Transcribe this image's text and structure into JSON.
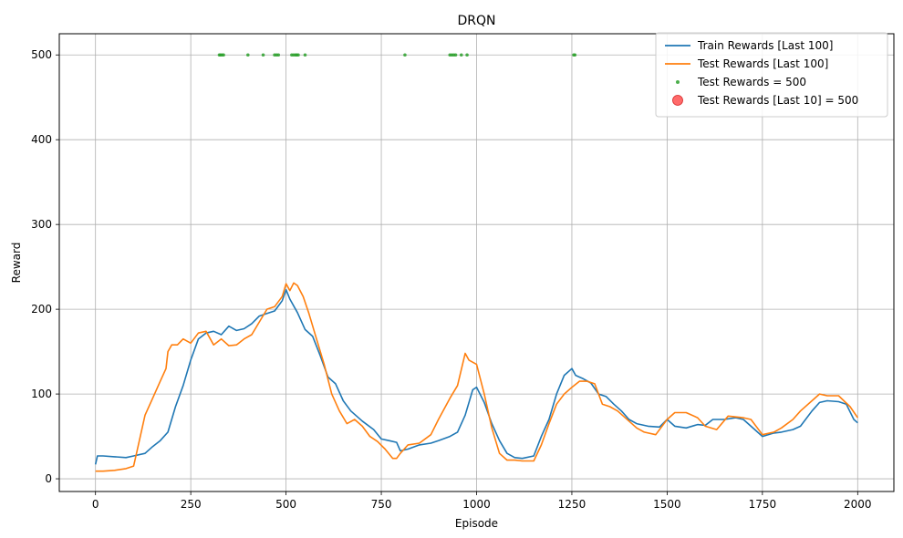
{
  "chart_data": {
    "type": "line",
    "title": "DRQN",
    "xlabel": "Episode",
    "ylabel": "Reward",
    "xlim": [
      -95,
      2095
    ],
    "ylim": [
      -15,
      525
    ],
    "xticks": [
      0,
      250,
      500,
      750,
      1000,
      1250,
      1500,
      1750,
      2000
    ],
    "yticks": [
      0,
      100,
      200,
      300,
      400,
      500
    ],
    "grid": true,
    "legend_position": "top-right",
    "series": [
      {
        "name": "Train Rewards [Last 100]",
        "type": "line",
        "color": "#1f77b4",
        "x": [
          0,
          5,
          20,
          50,
          80,
          100,
          130,
          150,
          170,
          190,
          210,
          230,
          250,
          270,
          290,
          310,
          330,
          350,
          370,
          390,
          410,
          430,
          450,
          470,
          490,
          500,
          510,
          530,
          550,
          570,
          590,
          610,
          630,
          650,
          670,
          700,
          730,
          750,
          770,
          790,
          800,
          820,
          850,
          880,
          900,
          930,
          950,
          970,
          990,
          1000,
          1020,
          1040,
          1060,
          1080,
          1100,
          1120,
          1150,
          1170,
          1190,
          1210,
          1230,
          1250,
          1260,
          1280,
          1300,
          1320,
          1340,
          1360,
          1380,
          1400,
          1420,
          1450,
          1480,
          1500,
          1520,
          1550,
          1580,
          1600,
          1620,
          1650,
          1680,
          1700,
          1720,
          1750,
          1780,
          1800,
          1830,
          1850,
          1880,
          1900,
          1920,
          1950,
          1970,
          1990,
          2000
        ],
        "y": [
          17,
          27,
          27,
          26,
          25,
          27,
          30,
          38,
          45,
          55,
          85,
          110,
          140,
          165,
          172,
          174,
          170,
          180,
          175,
          177,
          183,
          192,
          195,
          198,
          210,
          223,
          212,
          196,
          176,
          168,
          145,
          120,
          112,
          92,
          80,
          68,
          58,
          47,
          45,
          43,
          33,
          35,
          40,
          42,
          45,
          50,
          55,
          75,
          105,
          108,
          90,
          65,
          45,
          30,
          25,
          24,
          27,
          50,
          70,
          100,
          122,
          130,
          122,
          118,
          113,
          100,
          97,
          88,
          80,
          70,
          65,
          62,
          61,
          70,
          62,
          60,
          64,
          63,
          70,
          70,
          72,
          70,
          62,
          50,
          54,
          55,
          58,
          62,
          80,
          90,
          92,
          91,
          88,
          70,
          66
        ]
      },
      {
        "name": "Test Rewards [Last 100]",
        "type": "line",
        "color": "#ff7f0e",
        "x": [
          0,
          20,
          50,
          80,
          100,
          110,
          130,
          150,
          170,
          185,
          190,
          200,
          215,
          230,
          250,
          270,
          290,
          310,
          330,
          350,
          370,
          390,
          410,
          430,
          450,
          470,
          490,
          500,
          510,
          520,
          530,
          545,
          560,
          580,
          600,
          620,
          640,
          660,
          680,
          700,
          720,
          740,
          760,
          780,
          790,
          800,
          820,
          850,
          880,
          900,
          930,
          950,
          970,
          980,
          1000,
          1020,
          1040,
          1060,
          1080,
          1100,
          1120,
          1150,
          1170,
          1190,
          1210,
          1230,
          1250,
          1270,
          1290,
          1310,
          1330,
          1350,
          1370,
          1400,
          1420,
          1440,
          1470,
          1500,
          1520,
          1550,
          1580,
          1600,
          1630,
          1660,
          1700,
          1720,
          1750,
          1780,
          1800,
          1830,
          1850,
          1880,
          1900,
          1920,
          1950,
          1980,
          2000
        ],
        "y": [
          9,
          9,
          10,
          12,
          15,
          35,
          75,
          95,
          115,
          130,
          150,
          158,
          158,
          165,
          160,
          172,
          174,
          158,
          165,
          157,
          158,
          165,
          170,
          185,
          200,
          203,
          215,
          230,
          222,
          231,
          228,
          215,
          195,
          165,
          135,
          100,
          80,
          65,
          70,
          62,
          50,
          44,
          35,
          24,
          24,
          30,
          40,
          42,
          52,
          70,
          95,
          110,
          148,
          140,
          135,
          100,
          60,
          30,
          22,
          22,
          21,
          21,
          40,
          65,
          88,
          100,
          108,
          115,
          115,
          112,
          88,
          85,
          80,
          68,
          60,
          55,
          52,
          70,
          78,
          78,
          72,
          62,
          58,
          74,
          72,
          70,
          52,
          55,
          60,
          70,
          80,
          92,
          100,
          98,
          98,
          85,
          72
        ]
      },
      {
        "name": "Test Rewards = 500",
        "type": "scatter",
        "color": "#2ca02c",
        "x": [
          325,
          328,
          332,
          336,
          400,
          440,
          470,
          475,
          480,
          515,
          520,
          525,
          528,
          532,
          550,
          812,
          930,
          935,
          940,
          945,
          960,
          975,
          1255,
          1258
        ],
        "y": [
          500,
          500,
          500,
          500,
          500,
          500,
          500,
          500,
          500,
          500,
          500,
          500,
          500,
          500,
          500,
          500,
          500,
          500,
          500,
          500,
          500,
          500,
          500,
          500
        ]
      },
      {
        "name": "Test Rewards [Last 10] = 500",
        "type": "scatter",
        "color": "#ff5a5a",
        "x": [],
        "y": []
      }
    ]
  }
}
